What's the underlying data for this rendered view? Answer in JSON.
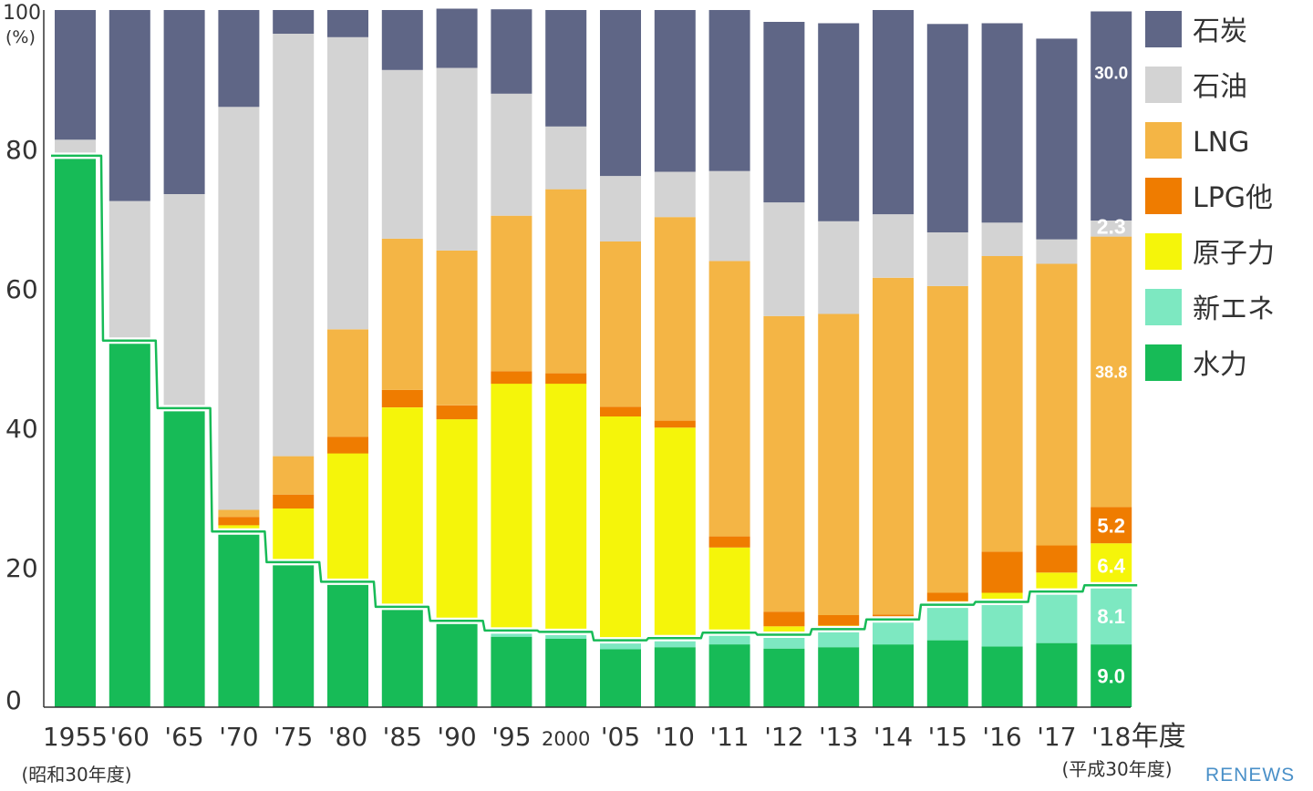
{
  "chart_data": {
    "type": "bar",
    "stacked": true,
    "percent": true,
    "unit": "(%)",
    "categories": [
      "1955",
      "'60",
      "'65",
      "'70",
      "'75",
      "'80",
      "'85",
      "'90",
      "'95",
      "2000",
      "'05",
      "'10",
      "'11",
      "'12",
      "'13",
      "'14",
      "'15",
      "'16",
      "'17",
      "'18"
    ],
    "first_category_sub": "(昭和30年度)",
    "last_category_suffix": "年度",
    "last_category_sub": "(平成30年度)",
    "yticks": [
      0,
      20,
      40,
      60,
      80,
      100
    ],
    "ylim": [
      0,
      100
    ],
    "series": [
      {
        "name": "水力",
        "color": "#17bb57",
        "values": [
          78.7,
          52.2,
          42.5,
          24.8,
          20.4,
          17.6,
          14.0,
          12.0,
          10.1,
          9.8,
          8.3,
          8.6,
          9.0,
          8.4,
          8.6,
          9.0,
          9.6,
          8.7,
          9.2,
          9.0
        ]
      },
      {
        "name": "新エネ",
        "color": "#7de8c1",
        "values": [
          0,
          0,
          0,
          0,
          0,
          0,
          0,
          0,
          0.5,
          0.6,
          0.9,
          0.9,
          1.3,
          1.6,
          2.2,
          3.2,
          4.7,
          6.0,
          7.0,
          8.1
        ]
      },
      {
        "name": "原子力",
        "color": "#f5f50a",
        "values": [
          0,
          0,
          0,
          1.3,
          8.1,
          18.8,
          29.0,
          29.3,
          35.8,
          36.0,
          32.5,
          30.6,
          12.6,
          1.6,
          0.9,
          0,
          0.9,
          1.7,
          3.1,
          6.4
        ]
      },
      {
        "name": "LPG他",
        "color": "#ef7c00",
        "values": [
          0,
          0,
          0.3,
          1.2,
          2.0,
          2.4,
          2.5,
          2.0,
          1.8,
          1.5,
          1.4,
          1.0,
          1.6,
          2.1,
          1.5,
          1.1,
          1.2,
          5.9,
          3.9,
          5.2
        ]
      },
      {
        "name": "LNG",
        "color": "#f4b545",
        "values": [
          0,
          0,
          0,
          1.0,
          5.5,
          15.4,
          21.7,
          22.2,
          22.3,
          26.4,
          23.7,
          29.2,
          39.5,
          42.4,
          43.2,
          48.3,
          44.0,
          42.4,
          40.4,
          38.8
        ]
      },
      {
        "name": "石油",
        "color": "#d3d3d3",
        "values": [
          2.7,
          20.4,
          30.8,
          57.8,
          60.6,
          41.9,
          24.2,
          26.2,
          17.5,
          9.0,
          9.4,
          6.5,
          12.9,
          16.3,
          13.3,
          9.1,
          7.7,
          4.8,
          3.5,
          2.3
        ]
      },
      {
        "name": "石炭",
        "color": "#5f6686",
        "values": [
          18.6,
          27.4,
          26.4,
          13.9,
          3.4,
          3.9,
          8.6,
          8.5,
          12.1,
          16.7,
          23.8,
          23.2,
          23.1,
          25.9,
          28.4,
          29.3,
          29.9,
          28.6,
          28.8,
          30.0
        ]
      }
    ],
    "legend": [
      "石炭",
      "石油",
      "LNG",
      "LPG他",
      "原子力",
      "新エネ",
      "水力"
    ],
    "legend_position": "right",
    "line": {
      "name": "水力+新エネ",
      "color": "#17bb57"
    },
    "data_labels": [
      {
        "series": "石炭",
        "category": "'18",
        "text": "30.0"
      },
      {
        "series": "石油",
        "category": "'18",
        "text": "2.3"
      },
      {
        "series": "LNG",
        "category": "'18",
        "text": "38.8"
      },
      {
        "series": "LPG他",
        "category": "'18",
        "text": "5.2"
      },
      {
        "series": "原子力",
        "category": "'18",
        "text": "6.4"
      },
      {
        "series": "新エネ",
        "category": "'18",
        "text": "8.1"
      },
      {
        "series": "水力",
        "category": "'18",
        "text": "9.0"
      }
    ],
    "grid": false
  },
  "brand": "RENEWS"
}
